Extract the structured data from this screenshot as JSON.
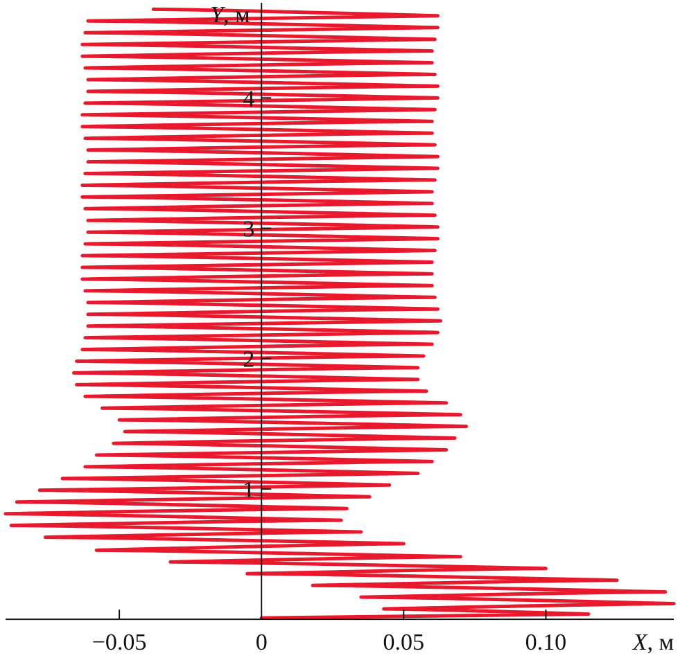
{
  "chart_data": {
    "type": "line",
    "xlabel_var": "X",
    "xlabel_unit": ", м",
    "ylabel_var": "Y",
    "ylabel_unit": ", м",
    "xlim": [
      -0.09,
      0.145
    ],
    "ylim": [
      -0.01,
      4.73
    ],
    "x_ticks": [
      {
        "value": -0.05,
        "label": "−0.05"
      },
      {
        "value": 0,
        "label": "0"
      },
      {
        "value": 0.05,
        "label": "0.05"
      },
      {
        "value": 0.1,
        "label": "0.10"
      }
    ],
    "y_ticks": [
      {
        "value": 1,
        "label": "1"
      },
      {
        "value": 2,
        "label": "2"
      },
      {
        "value": 3,
        "label": "3"
      },
      {
        "value": 4,
        "label": "4"
      }
    ],
    "line_color": "#e8192c",
    "axis_color": "#111111",
    "trajectory": [
      [
        0.0,
        0.01
      ],
      [
        0.115,
        0.04
      ],
      [
        0.043,
        0.08
      ],
      [
        0.145,
        0.12
      ],
      [
        0.035,
        0.17
      ],
      [
        0.142,
        0.21
      ],
      [
        0.018,
        0.26
      ],
      [
        0.125,
        0.3
      ],
      [
        -0.005,
        0.35
      ],
      [
        0.1,
        0.39
      ],
      [
        -0.032,
        0.44
      ],
      [
        0.07,
        0.48
      ],
      [
        -0.058,
        0.53
      ],
      [
        0.05,
        0.58
      ],
      [
        -0.076,
        0.63
      ],
      [
        0.035,
        0.67
      ],
      [
        -0.088,
        0.72
      ],
      [
        0.028,
        0.76
      ],
      [
        -0.09,
        0.81
      ],
      [
        0.03,
        0.85
      ],
      [
        -0.086,
        0.9
      ],
      [
        0.038,
        0.94
      ],
      [
        -0.078,
        0.99
      ],
      [
        0.045,
        1.03
      ],
      [
        -0.07,
        1.08
      ],
      [
        0.055,
        1.12
      ],
      [
        -0.062,
        1.17
      ],
      [
        0.06,
        1.21
      ],
      [
        -0.058,
        1.26
      ],
      [
        0.065,
        1.3
      ],
      [
        -0.052,
        1.35
      ],
      [
        0.068,
        1.39
      ],
      [
        -0.048,
        1.44
      ],
      [
        0.072,
        1.48
      ],
      [
        -0.05,
        1.53
      ],
      [
        0.07,
        1.57
      ],
      [
        -0.056,
        1.62
      ],
      [
        0.065,
        1.66
      ],
      [
        -0.062,
        1.71
      ],
      [
        0.058,
        1.75
      ],
      [
        -0.065,
        1.8
      ],
      [
        0.055,
        1.84
      ],
      [
        -0.066,
        1.89
      ],
      [
        0.055,
        1.93
      ],
      [
        -0.065,
        1.98
      ],
      [
        0.057,
        2.02
      ],
      [
        -0.063,
        2.07
      ],
      [
        0.06,
        2.11
      ],
      [
        -0.062,
        2.16
      ],
      [
        0.062,
        2.2
      ],
      [
        -0.061,
        2.25
      ],
      [
        0.063,
        2.29
      ],
      [
        -0.061,
        2.34
      ],
      [
        0.062,
        2.38
      ],
      [
        -0.061,
        2.43
      ],
      [
        0.061,
        2.47
      ],
      [
        -0.062,
        2.52
      ],
      [
        0.06,
        2.56
      ],
      [
        -0.063,
        2.61
      ],
      [
        0.06,
        2.65
      ],
      [
        -0.063,
        2.7
      ],
      [
        0.06,
        2.74
      ],
      [
        -0.063,
        2.79
      ],
      [
        0.061,
        2.83
      ],
      [
        -0.062,
        2.88
      ],
      [
        0.062,
        2.92
      ],
      [
        -0.061,
        2.97
      ],
      [
        0.062,
        3.01
      ],
      [
        -0.061,
        3.06
      ],
      [
        0.061,
        3.1
      ],
      [
        -0.062,
        3.15
      ],
      [
        0.06,
        3.19
      ],
      [
        -0.063,
        3.24
      ],
      [
        0.06,
        3.28
      ],
      [
        -0.063,
        3.33
      ],
      [
        0.061,
        3.37
      ],
      [
        -0.062,
        3.42
      ],
      [
        0.062,
        3.46
      ],
      [
        -0.061,
        3.51
      ],
      [
        0.062,
        3.55
      ],
      [
        -0.061,
        3.6
      ],
      [
        0.061,
        3.64
      ],
      [
        -0.062,
        3.69
      ],
      [
        0.06,
        3.73
      ],
      [
        -0.063,
        3.78
      ],
      [
        0.06,
        3.82
      ],
      [
        -0.063,
        3.87
      ],
      [
        0.061,
        3.91
      ],
      [
        -0.062,
        3.96
      ],
      [
        0.062,
        4.0
      ],
      [
        -0.061,
        4.05
      ],
      [
        0.062,
        4.09
      ],
      [
        -0.061,
        4.14
      ],
      [
        0.061,
        4.18
      ],
      [
        -0.062,
        4.23
      ],
      [
        0.06,
        4.27
      ],
      [
        -0.063,
        4.32
      ],
      [
        0.06,
        4.36
      ],
      [
        -0.063,
        4.41
      ],
      [
        0.061,
        4.45
      ],
      [
        -0.062,
        4.5
      ],
      [
        0.062,
        4.54
      ],
      [
        -0.061,
        4.59
      ],
      [
        0.062,
        4.63
      ],
      [
        -0.038,
        4.68
      ]
    ]
  }
}
